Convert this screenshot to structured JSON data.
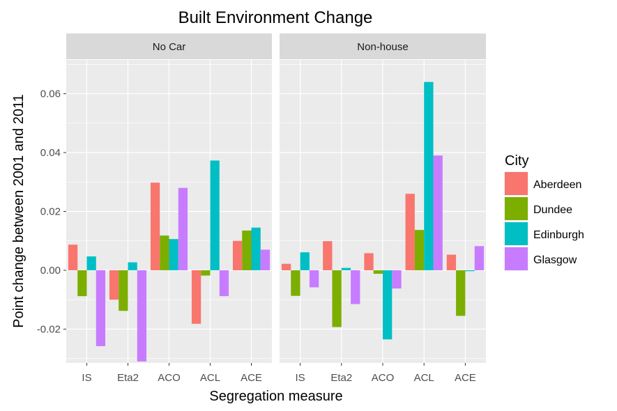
{
  "chart_data": {
    "type": "bar",
    "title": "Built Environment Change",
    "xlabel": "Segregation measure",
    "ylabel": "Point change between 2001 and 2011",
    "categories": [
      "IS",
      "Eta2",
      "ACO",
      "ACL",
      "ACE"
    ],
    "ylim": [
      -0.0315,
      0.0715
    ],
    "yticks": [
      -0.02,
      0.0,
      0.02,
      0.04,
      0.06
    ],
    "ytick_labels": [
      "-0.02",
      "0.00",
      "0.02",
      "0.04",
      "0.06"
    ],
    "grid": true,
    "legend_title": "City",
    "legend_position": "right",
    "series_names": [
      "Aberdeen",
      "Dundee",
      "Edinburgh",
      "Glasgow"
    ],
    "series_colors": [
      "#F8766D",
      "#7CAE00",
      "#00BFC4",
      "#C77CFF"
    ],
    "panels": [
      {
        "label": "No Car",
        "series": [
          {
            "name": "Aberdeen",
            "values": [
              0.0087,
              -0.01,
              0.0298,
              -0.0182,
              0.01
            ]
          },
          {
            "name": "Dundee",
            "values": [
              -0.0088,
              -0.0138,
              0.0118,
              -0.0018,
              0.0135
            ]
          },
          {
            "name": "Edinburgh",
            "values": [
              0.0047,
              0.0027,
              0.0106,
              0.0373,
              0.0145
            ]
          },
          {
            "name": "Glasgow",
            "values": [
              -0.0258,
              -0.031,
              0.028,
              -0.0088,
              0.007
            ]
          }
        ]
      },
      {
        "label": "Non-house",
        "series": [
          {
            "name": "Aberdeen",
            "values": [
              0.0022,
              0.0099,
              0.0058,
              0.026,
              0.0053
            ]
          },
          {
            "name": "Dundee",
            "values": [
              -0.0087,
              -0.0193,
              -0.0012,
              0.0137,
              -0.0155
            ]
          },
          {
            "name": "Edinburgh",
            "values": [
              0.0061,
              0.0008,
              -0.0235,
              0.064,
              -0.0003
            ]
          },
          {
            "name": "Glasgow",
            "values": [
              -0.0058,
              -0.0115,
              -0.0062,
              0.039,
              0.0082
            ]
          }
        ]
      }
    ]
  }
}
